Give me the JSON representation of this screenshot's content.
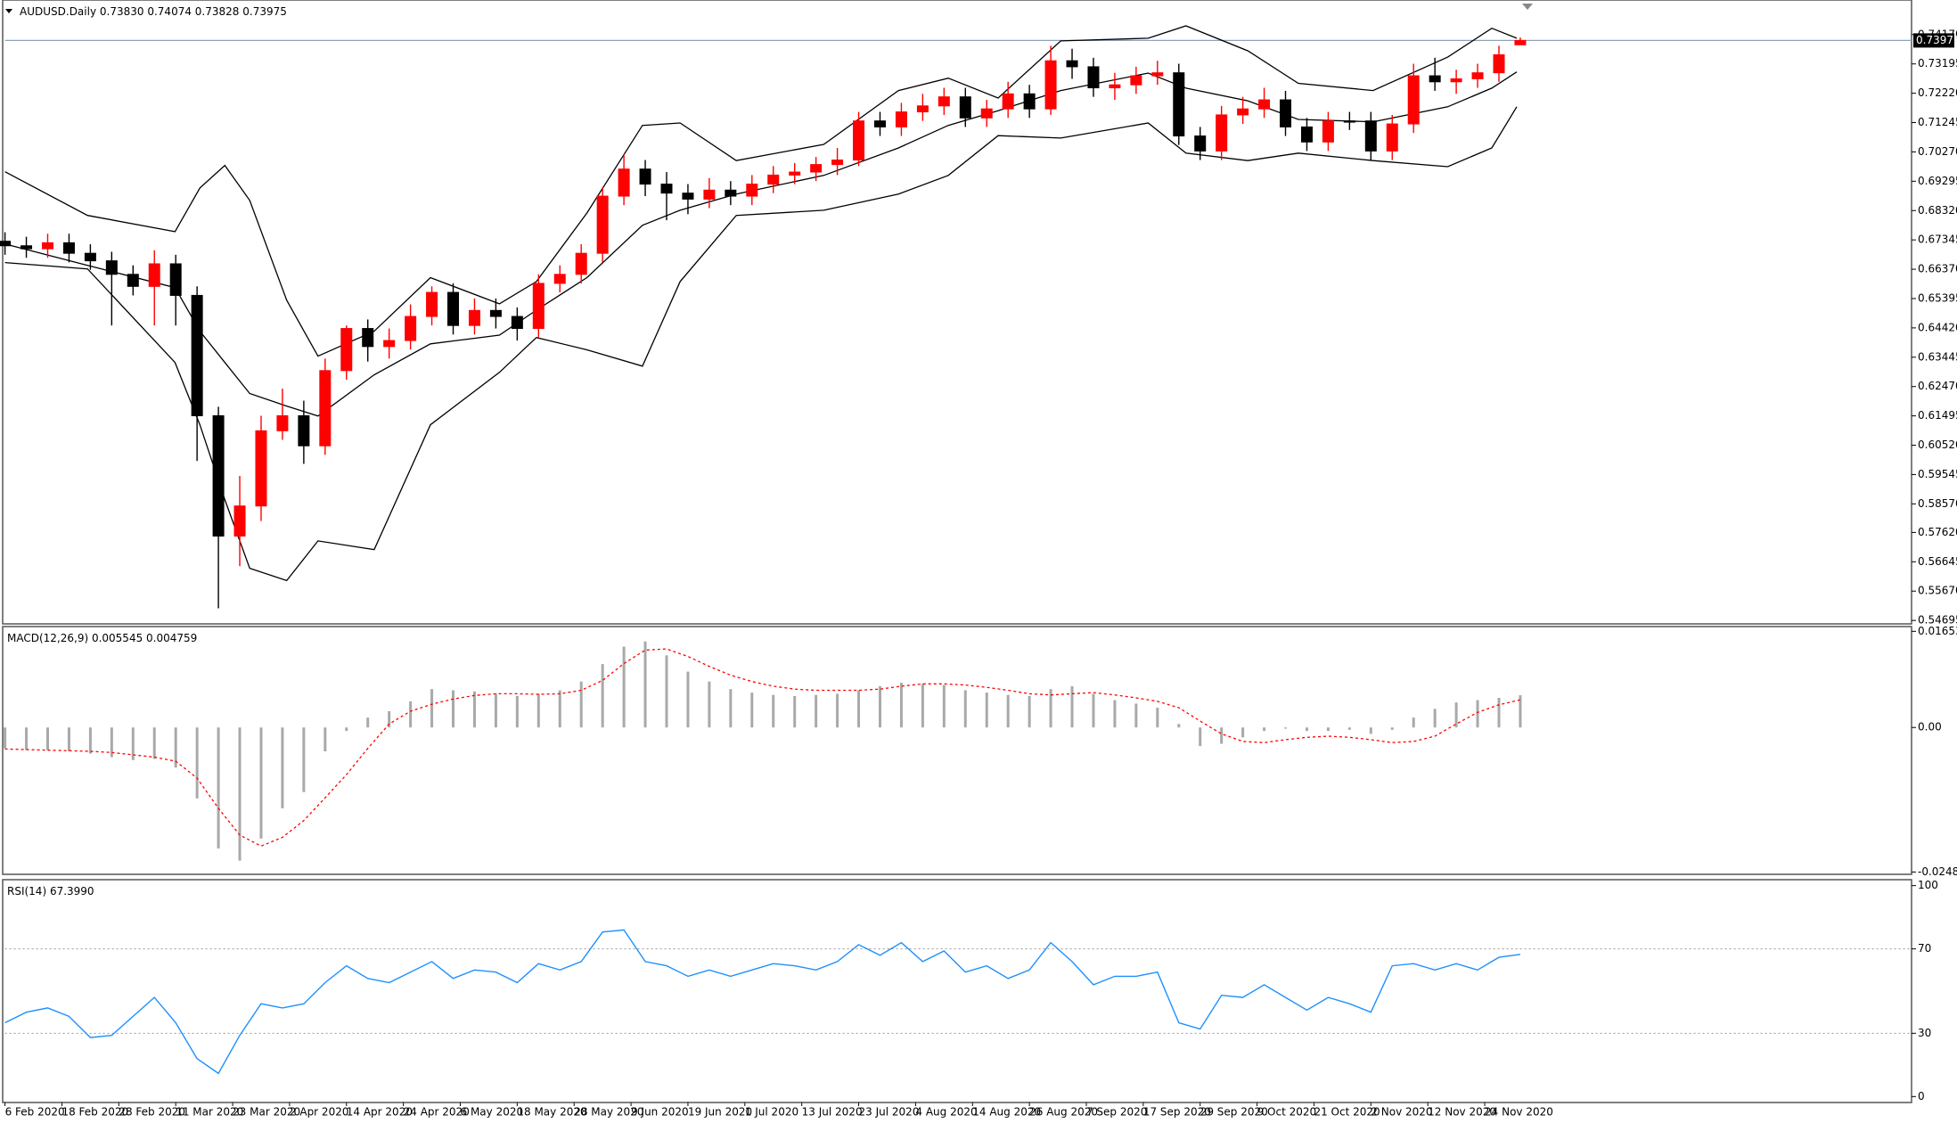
{
  "chart_data": [
    {
      "type": "candlestick",
      "title": "AUDUSD.Daily",
      "ohlc_labels": [
        "0.73830",
        "0.74074",
        "0.73828",
        "0.73975"
      ],
      "x": [
        0,
        3,
        6,
        9,
        12,
        15,
        18,
        21,
        24,
        27,
        30,
        33,
        36,
        39,
        42,
        45,
        48,
        51,
        54,
        57,
        60,
        63,
        66,
        69,
        72,
        75,
        78,
        81,
        84,
        87,
        90,
        93,
        96,
        99,
        102,
        105,
        108,
        111,
        114,
        117,
        120,
        123,
        126,
        129,
        132,
        135,
        138,
        141,
        144,
        147,
        150,
        153,
        156,
        159,
        162,
        165,
        168,
        171,
        174,
        177,
        180,
        183,
        186,
        189,
        192,
        195,
        198,
        201,
        204,
        207,
        210,
        213
      ],
      "open": [
        0.673,
        0.6715,
        0.6705,
        0.6725,
        0.669,
        0.6665,
        0.662,
        0.658,
        0.6655,
        0.655,
        0.615,
        0.575,
        0.585,
        0.61,
        0.615,
        0.605,
        0.63,
        0.644,
        0.638,
        0.64,
        0.648,
        0.656,
        0.645,
        0.65,
        0.648,
        0.644,
        0.659,
        0.662,
        0.669,
        0.688,
        0.697,
        0.692,
        0.689,
        0.687,
        0.69,
        0.688,
        0.692,
        0.695,
        0.696,
        0.6985,
        0.7,
        0.713,
        0.711,
        0.716,
        0.718,
        0.721,
        0.714,
        0.717,
        0.722,
        0.717,
        0.733,
        0.731,
        0.724,
        0.725,
        0.728,
        0.729,
        0.708,
        0.703,
        0.715,
        0.717,
        0.72,
        0.711,
        0.706,
        0.713,
        0.713,
        0.703,
        0.712,
        0.728,
        0.726,
        0.727,
        0.729,
        0.7383
      ],
      "high": [
        0.676,
        0.6745,
        0.6755,
        0.6755,
        0.672,
        0.6695,
        0.665,
        0.67,
        0.6685,
        0.658,
        0.618,
        0.595,
        0.615,
        0.624,
        0.62,
        0.634,
        0.645,
        0.647,
        0.644,
        0.652,
        0.658,
        0.659,
        0.654,
        0.654,
        0.651,
        0.662,
        0.665,
        0.672,
        0.691,
        0.702,
        0.7,
        0.696,
        0.692,
        0.694,
        0.693,
        0.695,
        0.698,
        0.699,
        0.701,
        0.704,
        0.716,
        0.716,
        0.719,
        0.722,
        0.724,
        0.724,
        0.72,
        0.726,
        0.725,
        0.738,
        0.737,
        0.734,
        0.729,
        0.731,
        0.733,
        0.732,
        0.711,
        0.718,
        0.721,
        0.724,
        0.723,
        0.714,
        0.716,
        0.716,
        0.716,
        0.715,
        0.732,
        0.734,
        0.73,
        0.732,
        0.738,
        0.74074
      ],
      "low": [
        0.6685,
        0.6675,
        0.6675,
        0.666,
        0.6635,
        0.645,
        0.655,
        0.645,
        0.645,
        0.6,
        0.551,
        0.565,
        0.58,
        0.607,
        0.599,
        0.602,
        0.627,
        0.633,
        0.634,
        0.637,
        0.645,
        0.642,
        0.642,
        0.644,
        0.64,
        0.641,
        0.656,
        0.659,
        0.666,
        0.685,
        0.688,
        0.68,
        0.682,
        0.684,
        0.685,
        0.685,
        0.689,
        0.692,
        0.693,
        0.695,
        0.698,
        0.708,
        0.708,
        0.713,
        0.715,
        0.711,
        0.711,
        0.714,
        0.714,
        0.715,
        0.727,
        0.721,
        0.72,
        0.722,
        0.725,
        0.705,
        0.7,
        0.7,
        0.712,
        0.714,
        0.708,
        0.703,
        0.703,
        0.71,
        0.7,
        0.7,
        0.709,
        0.723,
        0.722,
        0.724,
        0.726,
        0.73828
      ],
      "close": [
        0.6715,
        0.6705,
        0.6725,
        0.669,
        0.6665,
        0.662,
        0.658,
        0.6655,
        0.655,
        0.615,
        0.575,
        0.585,
        0.61,
        0.615,
        0.605,
        0.63,
        0.644,
        0.638,
        0.64,
        0.648,
        0.656,
        0.645,
        0.65,
        0.648,
        0.644,
        0.659,
        0.662,
        0.669,
        0.688,
        0.697,
        0.692,
        0.689,
        0.687,
        0.69,
        0.688,
        0.692,
        0.695,
        0.696,
        0.6985,
        0.7,
        0.713,
        0.711,
        0.716,
        0.718,
        0.721,
        0.714,
        0.717,
        0.722,
        0.717,
        0.733,
        0.731,
        0.724,
        0.725,
        0.728,
        0.729,
        0.708,
        0.703,
        0.715,
        0.717,
        0.72,
        0.711,
        0.706,
        0.713,
        0.713,
        0.703,
        0.712,
        0.728,
        0.726,
        0.727,
        0.729,
        0.735,
        0.73975
      ],
      "up_color": "#ff0000",
      "down_color": "#000000",
      "bands": {
        "color": "#000000",
        "x": [
          0,
          11.6,
          23.9,
          27.4,
          30.9,
          34.4,
          39.6,
          44,
          51.9,
          59.8,
          69.5,
          74.7,
          81.8,
          89.6,
          94.9,
          102.8,
          115.1,
          125.6,
          132.6,
          139.6,
          148.4,
          160.7,
          166,
          174.7,
          181.8,
          192.3,
          202.8,
          209,
          212.5
        ],
        "upper": [
          0.6961,
          0.6816,
          0.6762,
          0.6907,
          0.6982,
          0.6866,
          0.6534,
          0.6348,
          0.6431,
          0.6609,
          0.6522,
          0.6596,
          0.6824,
          0.7115,
          0.7123,
          0.6998,
          0.7052,
          0.7231,
          0.7272,
          0.7206,
          0.7396,
          0.7405,
          0.7446,
          0.7363,
          0.7255,
          0.7231,
          0.7342,
          0.7438,
          0.7405
        ],
        "middle": [
          0.6721,
          0.665,
          0.6576,
          0.6431,
          0.6327,
          0.6224,
          0.6182,
          0.6149,
          0.6286,
          0.6389,
          0.6418,
          0.6501,
          0.6609,
          0.6783,
          0.6833,
          0.6887,
          0.6949,
          0.704,
          0.7115,
          0.7164,
          0.7231,
          0.7289,
          0.7239,
          0.7197,
          0.7135,
          0.7127,
          0.7177,
          0.7239,
          0.7293
        ],
        "lower": [
          0.6659,
          0.6638,
          0.6327,
          0.612,
          0.5871,
          0.5643,
          0.5602,
          0.5734,
          0.5705,
          0.612,
          0.6294,
          0.641,
          0.6369,
          0.6315,
          0.6596,
          0.6816,
          0.6833,
          0.6887,
          0.6949,
          0.7081,
          0.7073,
          0.7123,
          0.7023,
          0.6998,
          0.7023,
          0.6998,
          0.6978,
          0.704,
          0.7177
        ]
      },
      "last_price": {
        "value": 0.73975,
        "label": "0.73975"
      },
      "last_price_color": "#8fa3b8",
      "xlim": [
        0,
        268
      ],
      "ylim": [
        0.5461,
        0.7529
      ],
      "yticks": [
        {
          "value": 0.7417,
          "label": "0.74170"
        },
        {
          "value": 0.73195,
          "label": "0.73195"
        },
        {
          "value": 0.7222,
          "label": "0.72220"
        },
        {
          "value": 0.71245,
          "label": "0.71245"
        },
        {
          "value": 0.7027,
          "label": "0.70270"
        },
        {
          "value": 0.69295,
          "label": "0.69295"
        },
        {
          "value": 0.6832,
          "label": "0.68320"
        },
        {
          "value": 0.67345,
          "label": "0.67345"
        },
        {
          "value": 0.6637,
          "label": "0.66370"
        },
        {
          "value": 0.65395,
          "label": "0.65395"
        },
        {
          "value": 0.6442,
          "label": "0.64420"
        },
        {
          "value": 0.63445,
          "label": "0.63445"
        },
        {
          "value": 0.6247,
          "label": "0.62470"
        },
        {
          "value": 0.61495,
          "label": "0.61495"
        },
        {
          "value": 0.6052,
          "label": "0.60520"
        },
        {
          "value": 0.59545,
          "label": "0.59545"
        },
        {
          "value": 0.5857,
          "label": "0.58570"
        },
        {
          "value": 0.5762,
          "label": "0.57620"
        },
        {
          "value": 0.56645,
          "label": "0.56645"
        },
        {
          "value": 0.5567,
          "label": "0.55670"
        },
        {
          "value": 0.54695,
          "label": "0.54695"
        }
      ],
      "xticks": [
        {
          "value": 0,
          "label": "6 Feb 2020"
        },
        {
          "value": 8,
          "label": "18 Feb 2020"
        },
        {
          "value": 16,
          "label": "28 Feb 2020"
        },
        {
          "value": 24,
          "label": "11 Mar 2020"
        },
        {
          "value": 32,
          "label": "23 Mar 2020"
        },
        {
          "value": 40,
          "label": "2 Apr 2020"
        },
        {
          "value": 48,
          "label": "14 Apr 2020"
        },
        {
          "value": 56,
          "label": "24 Apr 2020"
        },
        {
          "value": 64,
          "label": "6 May 2020"
        },
        {
          "value": 72,
          "label": "18 May 2020"
        },
        {
          "value": 80,
          "label": "28 May 2020"
        },
        {
          "value": 88,
          "label": "9 Jun 2020"
        },
        {
          "value": 96,
          "label": "19 Jun 2020"
        },
        {
          "value": 104,
          "label": "1 Jul 2020"
        },
        {
          "value": 112,
          "label": "13 Jul 2020"
        },
        {
          "value": 120,
          "label": "23 Jul 2020"
        },
        {
          "value": 128,
          "label": "4 Aug 2020"
        },
        {
          "value": 136,
          "label": "14 Aug 2020"
        },
        {
          "value": 144,
          "label": "26 Aug 2020"
        },
        {
          "value": 152,
          "label": "7 Sep 2020"
        },
        {
          "value": 160,
          "label": "17 Sep 2020"
        },
        {
          "value": 168,
          "label": "29 Sep 2020"
        },
        {
          "value": 176,
          "label": "9 Oct 2020"
        },
        {
          "value": 184,
          "label": "21 Oct 2020"
        },
        {
          "value": 192,
          "label": "2 Nov 2020"
        },
        {
          "value": 200,
          "label": "12 Nov 2020"
        },
        {
          "value": 208,
          "label": "24 Nov 2020"
        }
      ]
    },
    {
      "type": "macd",
      "title": "MACD(12,26,9) 0.005545 0.004759",
      "x": [
        0,
        3,
        6,
        9,
        12,
        15,
        18,
        21,
        24,
        27,
        30,
        33,
        36,
        39,
        42,
        45,
        48,
        51,
        54,
        57,
        60,
        63,
        66,
        69,
        72,
        75,
        78,
        81,
        84,
        87,
        90,
        93,
        96,
        99,
        102,
        105,
        108,
        111,
        114,
        117,
        120,
        123,
        126,
        129,
        132,
        135,
        138,
        141,
        144,
        147,
        150,
        153,
        156,
        159,
        162,
        165,
        168,
        171,
        174,
        177,
        180,
        183,
        186,
        189,
        192,
        195,
        198,
        201,
        204,
        207,
        210,
        213
      ],
      "histogram": {
        "color": "#a9a9a9",
        "values": [
          -0.0036,
          -0.0039,
          -0.0039,
          -0.0041,
          -0.0045,
          -0.0051,
          -0.0056,
          -0.0054,
          -0.0069,
          -0.0122,
          -0.0208,
          -0.0229,
          -0.0191,
          -0.0139,
          -0.0111,
          -0.0041,
          -0.0006,
          0.0017,
          0.0028,
          0.0045,
          0.0066,
          0.0064,
          0.0062,
          0.0058,
          0.0054,
          0.0058,
          0.0064,
          0.0079,
          0.0109,
          0.0139,
          0.0148,
          0.0124,
          0.0096,
          0.0079,
          0.0066,
          0.006,
          0.0056,
          0.0054,
          0.0056,
          0.0058,
          0.0064,
          0.0071,
          0.0077,
          0.0075,
          0.0073,
          0.0064,
          0.006,
          0.0056,
          0.0054,
          0.0066,
          0.0071,
          0.0058,
          0.0047,
          0.0041,
          0.0034,
          0.0006,
          -0.0032,
          -0.0028,
          -0.0017,
          -0.0006,
          -0.0002,
          -0.0006,
          -0.0006,
          -0.0004,
          -0.0011,
          -0.0004,
          0.0017,
          0.0032,
          0.0043,
          0.0047,
          0.0051,
          0.005545
        ]
      },
      "signal": {
        "color": "#ff0000",
        "values": [
          -0.0037,
          -0.0038,
          -0.0039,
          -0.004,
          -0.0041,
          -0.0043,
          -0.0047,
          -0.0051,
          -0.0058,
          -0.0087,
          -0.0139,
          -0.0185,
          -0.0204,
          -0.0189,
          -0.016,
          -0.0121,
          -0.0081,
          -0.0036,
          0.0006,
          0.0028,
          0.004,
          0.0049,
          0.0055,
          0.0058,
          0.0058,
          0.0057,
          0.0058,
          0.0064,
          0.0081,
          0.011,
          0.0133,
          0.0135,
          0.0122,
          0.0105,
          0.009,
          0.0079,
          0.0071,
          0.0066,
          0.0064,
          0.0064,
          0.0064,
          0.0066,
          0.0071,
          0.0075,
          0.0075,
          0.0073,
          0.0069,
          0.0064,
          0.0058,
          0.0056,
          0.0058,
          0.006,
          0.0056,
          0.0051,
          0.0045,
          0.0034,
          0.0011,
          -0.0011,
          -0.0024,
          -0.0026,
          -0.0021,
          -0.0017,
          -0.0015,
          -0.0017,
          -0.0021,
          -0.0026,
          -0.0024,
          -0.0015,
          0.0006,
          0.0026,
          0.0039,
          0.004759
        ]
      },
      "xlim": [
        0,
        268
      ],
      "ylim": [
        -0.0251,
        0.0172
      ],
      "yticks": [
        0.016538,
        {
          "value": 0,
          "label": "0.00"
        },
        -0.024849
      ]
    },
    {
      "type": "rsi",
      "title": "RSI(14) 67.3990",
      "color": "#1e90ff",
      "x": [
        0,
        3,
        6,
        9,
        12,
        15,
        18,
        21,
        24,
        27,
        30,
        33,
        36,
        39,
        42,
        45,
        48,
        51,
        54,
        57,
        60,
        63,
        66,
        69,
        72,
        75,
        78,
        81,
        84,
        87,
        90,
        93,
        96,
        99,
        102,
        105,
        108,
        111,
        114,
        117,
        120,
        123,
        126,
        129,
        132,
        135,
        138,
        141,
        144,
        147,
        150,
        153,
        156,
        159,
        162,
        165,
        168,
        171,
        174,
        177,
        180,
        183,
        186,
        189,
        192,
        195,
        198,
        201,
        204,
        207,
        210,
        213
      ],
      "values": [
        35,
        40,
        42,
        38,
        28,
        29,
        38,
        47,
        35,
        18,
        11,
        29,
        44,
        42,
        44,
        54,
        62,
        56,
        54,
        59,
        64,
        56,
        60,
        59,
        54,
        63,
        60,
        64,
        78,
        79,
        64,
        62,
        57,
        60,
        57,
        60,
        63,
        62,
        60,
        64,
        72,
        67,
        73,
        64,
        69,
        59,
        62,
        56,
        60,
        73,
        64,
        53,
        57,
        57,
        59,
        35,
        32,
        48,
        47,
        53,
        47,
        41,
        47,
        44,
        40,
        62,
        63,
        60,
        63,
        60,
        66,
        67.399
      ],
      "xlim": [
        0,
        268
      ],
      "ylim": [
        -2.4,
        102.4
      ],
      "yticks": [
        100,
        70,
        30,
        0
      ],
      "levels": [
        70,
        30
      ]
    }
  ]
}
